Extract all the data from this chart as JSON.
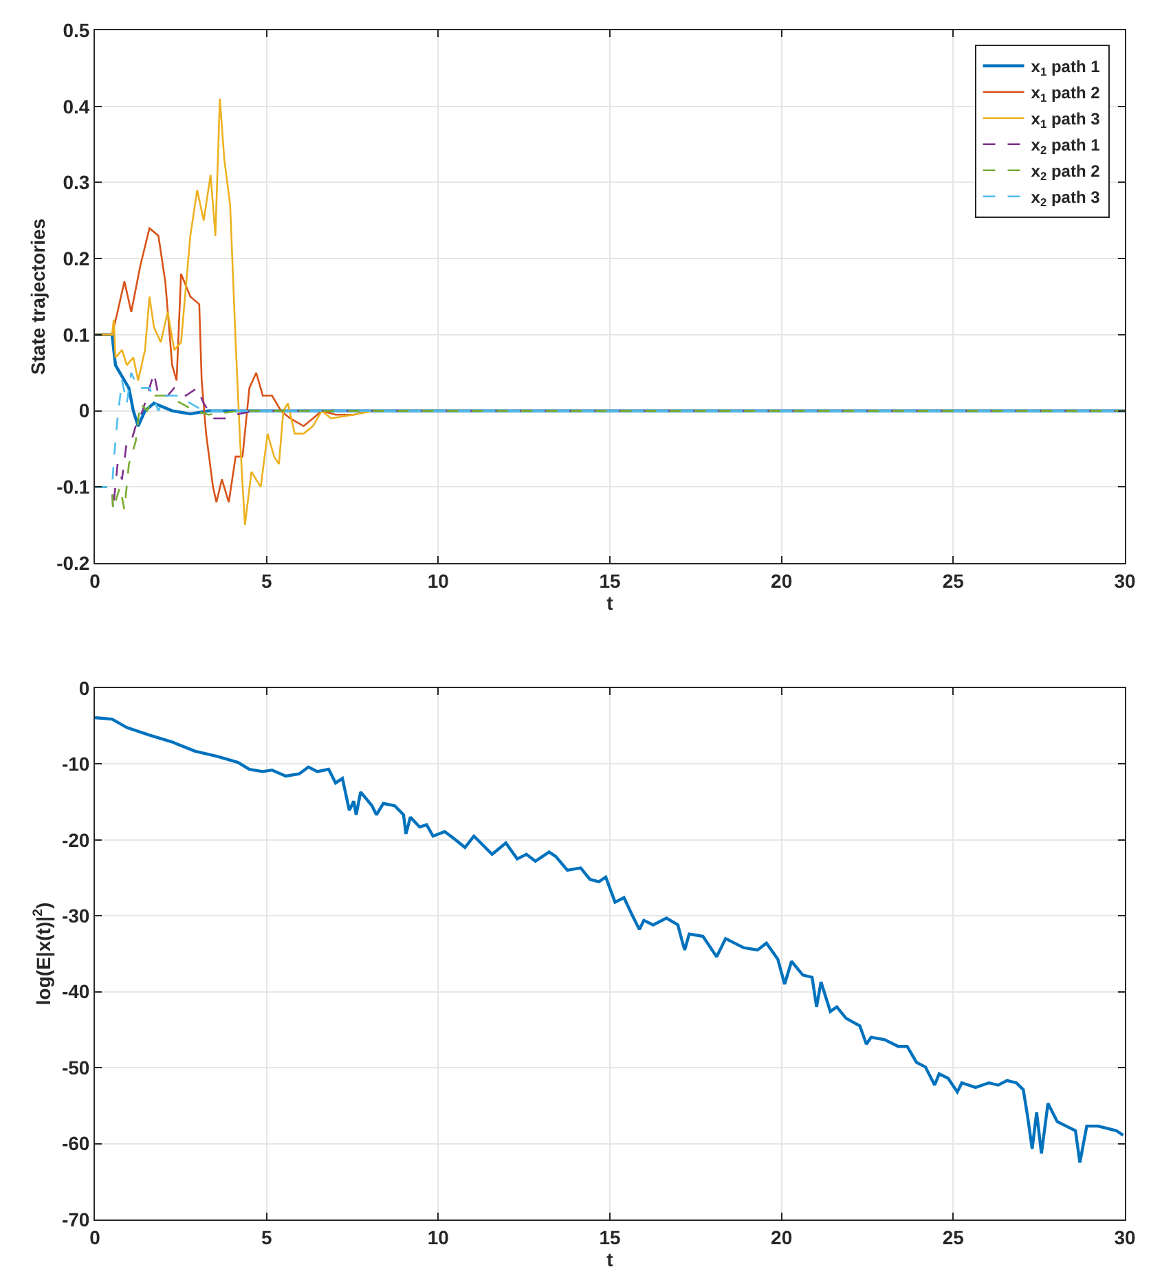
{
  "chart_data": [
    {
      "type": "line",
      "xlabel": "t",
      "ylabel": "State trajectories",
      "xlim": [
        0,
        30
      ],
      "xticks": [
        0,
        5,
        10,
        15,
        20,
        25,
        30
      ],
      "ylim": [
        -0.2,
        0.5
      ],
      "yticks": [
        -0.2,
        -0.1,
        0,
        0.1,
        0.2,
        0.3,
        0.4,
        0.5
      ],
      "grid": true,
      "legend": "top right",
      "marker": "none",
      "series": [
        {
          "name": "x$_{1}$ path 1",
          "color": "#0072bd",
          "line_style": "solid",
          "x": [
            0,
            0.5,
            0.6,
            0.73,
            0.86,
            0.99,
            1.12,
            1.26,
            1.46,
            1.72,
            2.25,
            2.78,
            3.3,
            30
          ],
          "values": [
            0.1,
            0.1,
            0.06,
            0.05,
            0.04,
            0.03,
            0.0,
            -0.02,
            0.0,
            0.01,
            0.0,
            -0.004,
            0,
            0
          ]
        },
        {
          "name": "x$_{1}$ path 2",
          "color": "#d95319",
          "line_style": "solid",
          "x": [
            0,
            0.5,
            0.66,
            0.86,
            1.06,
            1.32,
            1.59,
            1.85,
            2.05,
            2.25,
            2.38,
            2.51,
            2.78,
            3.04,
            3.11,
            3.24,
            3.44,
            3.54,
            3.7,
            3.9,
            4.1,
            4.3,
            4.5,
            4.7,
            4.89,
            5.16,
            5.42,
            5.69,
            6.08,
            6.35,
            6.61,
            7.01,
            7.54,
            8.07,
            8.86,
            30
          ],
          "values": [
            0.1,
            0.1,
            0.13,
            0.17,
            0.13,
            0.19,
            0.24,
            0.23,
            0.17,
            0.06,
            0.04,
            0.18,
            0.15,
            0.14,
            0.04,
            -0.03,
            -0.1,
            -0.12,
            -0.09,
            -0.12,
            -0.06,
            -0.06,
            0.03,
            0.05,
            0.02,
            0.02,
            0.0,
            -0.01,
            -0.02,
            -0.01,
            0.0,
            -0.005,
            -0.005,
            0.0,
            0,
            0
          ]
        },
        {
          "name": "x$_{1}$ path 3",
          "color": "#edb120",
          "line_style": "solid",
          "x": [
            0,
            0.5,
            0.55,
            0.6,
            0.79,
            0.93,
            1.12,
            1.26,
            1.46,
            1.59,
            1.72,
            1.92,
            2.12,
            2.31,
            2.51,
            2.78,
            2.98,
            3.17,
            3.37,
            3.51,
            3.64,
            3.77,
            3.94,
            4.1,
            4.23,
            4.37,
            4.56,
            4.83,
            5.03,
            5.22,
            5.36,
            5.49,
            5.62,
            5.82,
            6.08,
            6.35,
            6.61,
            6.88,
            7.54,
            8.07,
            9.39,
            30
          ],
          "values": [
            0.1,
            0.1,
            0.12,
            0.07,
            0.08,
            0.06,
            0.07,
            0.04,
            0.08,
            0.15,
            0.11,
            0.09,
            0.13,
            0.08,
            0.09,
            0.23,
            0.29,
            0.25,
            0.31,
            0.23,
            0.41,
            0.33,
            0.27,
            0.09,
            -0.04,
            -0.15,
            -0.08,
            -0.1,
            -0.03,
            -0.06,
            -0.07,
            0.0,
            0.01,
            -0.03,
            -0.03,
            -0.02,
            0.0,
            -0.01,
            -0.005,
            0.0,
            0,
            0
          ]
        },
        {
          "name": "x$_{2}$ path 1",
          "color": "#7e2f8e",
          "line_style": "dashed",
          "x": [
            0,
            0.5,
            0.53,
            0.66,
            0.79,
            0.93,
            1.06,
            1.19,
            1.39,
            1.59,
            1.72,
            1.85,
            2.12,
            2.31,
            2.65,
            2.98,
            3.17,
            3.44,
            3.84,
            4.1,
            4.63,
            5.56,
            30
          ],
          "values": [
            -0.1,
            -0.1,
            -0.13,
            -0.07,
            -0.09,
            -0.04,
            -0.04,
            -0.02,
            0.0,
            0.03,
            0.05,
            0.02,
            0.02,
            0.03,
            0.02,
            0.03,
            0.01,
            -0.01,
            -0.01,
            -0.005,
            0,
            0,
            0
          ]
        },
        {
          "name": "x$_{2}$ path 2",
          "color": "#77ac30",
          "line_style": "dashed",
          "x": [
            0,
            0.5,
            0.53,
            0.73,
            0.86,
            0.99,
            1.19,
            1.32,
            1.52,
            1.72,
            2.05,
            2.51,
            2.91,
            3.31,
            4.23,
            5.56,
            30
          ],
          "values": [
            -0.1,
            -0.1,
            -0.13,
            -0.1,
            -0.13,
            -0.07,
            -0.04,
            0.01,
            0.0,
            0.02,
            0.02,
            0.01,
            0.0,
            -0.005,
            0,
            0,
            0
          ]
        },
        {
          "name": "x$_{2}$ path 3",
          "color": "#4dbeee",
          "line_style": "dashed",
          "x": [
            0,
            0.5,
            0.56,
            0.66,
            0.79,
            0.93,
            1.06,
            1.26,
            1.59,
            1.85,
            2.05,
            2.38,
            2.78,
            3.17,
            3.57,
            30
          ],
          "values": [
            -0.1,
            -0.1,
            -0.06,
            -0.01,
            0.04,
            0.01,
            0.05,
            0.03,
            0.03,
            0.0,
            0.02,
            0.02,
            0.01,
            0.0,
            0,
            0
          ]
        }
      ]
    },
    {
      "type": "line",
      "xlabel": "t",
      "ylabel": "log(E|x(t)|$^{2}$)",
      "xlim": [
        0,
        30
      ],
      "xticks": [
        0,
        5,
        10,
        15,
        20,
        25,
        30
      ],
      "ylim": [
        -70,
        0
      ],
      "yticks": [
        -70,
        -60,
        -50,
        -40,
        -30,
        -20,
        -10,
        0
      ],
      "grid": true,
      "marker": "none",
      "line_style": "solid",
      "series": [
        {
          "color": "#0072bd",
          "x": [
            0,
            0.5,
            0.93,
            1.59,
            2.25,
            2.91,
            3.57,
            4.17,
            4.5,
            4.89,
            5.16,
            5.56,
            5.95,
            6.22,
            6.48,
            6.81,
            7.01,
            7.21,
            7.41,
            7.54,
            7.61,
            7.74,
            8.07,
            8.2,
            8.4,
            8.73,
            8.99,
            9.06,
            9.19,
            9.46,
            9.66,
            9.85,
            10.19,
            10.45,
            10.78,
            11.04,
            11.24,
            11.57,
            11.97,
            12.3,
            12.57,
            12.83,
            13.23,
            13.43,
            13.76,
            14.15,
            14.42,
            14.68,
            14.88,
            15.15,
            15.41,
            15.66,
            15.86,
            15.99,
            16.26,
            16.65,
            16.98,
            17.12,
            17.18,
            17.31,
            17.71,
            18.11,
            18.37,
            18.9,
            19.3,
            19.56,
            19.89,
            20.09,
            20.29,
            20.62,
            20.89,
            21.02,
            21.15,
            21.42,
            21.61,
            21.88,
            22.28,
            22.47,
            22.61,
            23.0,
            23.4,
            23.66,
            23.93,
            24.19,
            24.46,
            24.59,
            24.85,
            25.12,
            25.25,
            25.65,
            26.04,
            26.31,
            26.57,
            26.84,
            27.04,
            27.17,
            27.3,
            27.43,
            27.57,
            27.76,
            28.03,
            28.29,
            28.56,
            28.69,
            28.89,
            29.22,
            29.48,
            29.75,
            29.95
          ],
          "values": [
            -3.9,
            -4.1,
            -5.2,
            -6.2,
            -7.1,
            -8.3,
            -9.0,
            -9.8,
            -10.7,
            -11.0,
            -10.8,
            -11.6,
            -11.3,
            -10.4,
            -11.0,
            -10.7,
            -12.5,
            -11.9,
            -16.1,
            -14.9,
            -16.7,
            -13.7,
            -15.5,
            -16.7,
            -15.2,
            -15.5,
            -16.7,
            -19.2,
            -17.0,
            -18.3,
            -18.0,
            -19.5,
            -18.9,
            -19.8,
            -21.0,
            -19.5,
            -20.4,
            -21.9,
            -20.4,
            -22.5,
            -21.9,
            -22.8,
            -21.6,
            -22.2,
            -24.0,
            -23.7,
            -25.2,
            -25.5,
            -24.9,
            -28.2,
            -27.6,
            -30.0,
            -31.8,
            -30.6,
            -31.2,
            -30.3,
            -31.2,
            -33.6,
            -34.5,
            -32.4,
            -32.7,
            -35.4,
            -33.0,
            -34.2,
            -34.5,
            -33.6,
            -35.7,
            -39.0,
            -36.0,
            -37.8,
            -38.1,
            -42.0,
            -38.7,
            -42.6,
            -42.0,
            -43.5,
            -44.5,
            -46.9,
            -46.0,
            -46.3,
            -47.2,
            -47.2,
            -49.3,
            -49.9,
            -52.3,
            -50.8,
            -51.4,
            -53.2,
            -52.0,
            -52.6,
            -52.0,
            -52.3,
            -51.7,
            -52.0,
            -52.9,
            -56.5,
            -60.7,
            -55.9,
            -61.3,
            -54.7,
            -57.1,
            -57.7,
            -58.3,
            -62.5,
            -57.7,
            -57.7,
            -58.0,
            -58.3,
            -58.9
          ]
        }
      ]
    }
  ]
}
